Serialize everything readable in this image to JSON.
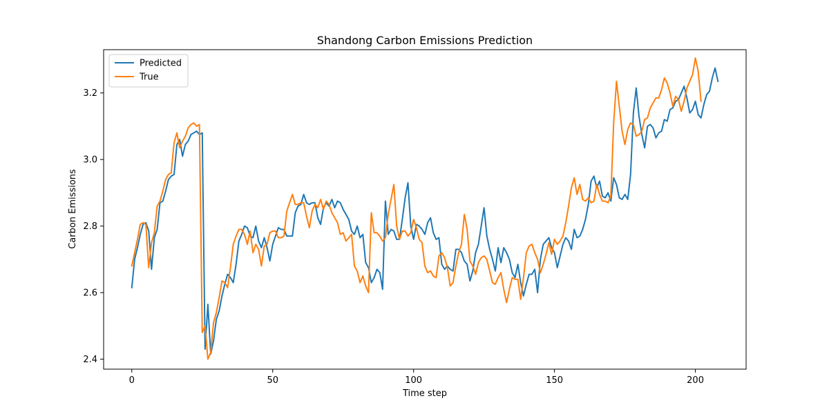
{
  "chart_data": {
    "type": "line",
    "title": "Shandong Carbon Emissions Prediction",
    "xlabel": "Time step",
    "ylabel": "Carbon Emissions",
    "xlim": [
      -10,
      218
    ],
    "ylim": [
      2.37,
      3.33
    ],
    "xticks": [
      0,
      50,
      100,
      150,
      200
    ],
    "yticks": [
      2.4,
      2.6,
      2.8,
      3.0,
      3.2
    ],
    "ytick_labels": [
      "2.4",
      "2.6",
      "2.8",
      "3.0",
      "3.2"
    ],
    "grid": false,
    "legend": {
      "location": "upper left",
      "entries": [
        "Predicted",
        "True"
      ]
    },
    "series": [
      {
        "name": "Predicted",
        "color": "#1f77b4",
        "values": [
          2.615,
          2.7,
          2.735,
          2.775,
          2.805,
          2.81,
          2.785,
          2.67,
          2.765,
          2.79,
          2.87,
          2.875,
          2.905,
          2.94,
          2.95,
          2.955,
          3.045,
          3.06,
          3.01,
          3.045,
          3.055,
          3.075,
          3.08,
          3.085,
          3.075,
          3.08,
          2.43,
          2.565,
          2.415,
          2.455,
          2.52,
          2.545,
          2.59,
          2.625,
          2.655,
          2.645,
          2.63,
          2.685,
          2.755,
          2.775,
          2.8,
          2.795,
          2.77,
          2.765,
          2.8,
          2.755,
          2.735,
          2.765,
          2.735,
          2.695,
          2.745,
          2.77,
          2.795,
          2.79,
          2.79,
          2.77,
          2.77,
          2.77,
          2.84,
          2.86,
          2.865,
          2.895,
          2.87,
          2.865,
          2.87,
          2.87,
          2.825,
          2.805,
          2.855,
          2.87,
          2.86,
          2.88,
          2.855,
          2.875,
          2.87,
          2.85,
          2.835,
          2.82,
          2.785,
          2.775,
          2.8,
          2.765,
          2.775,
          2.69,
          2.675,
          2.63,
          2.645,
          2.67,
          2.66,
          2.61,
          2.875,
          2.775,
          2.79,
          2.785,
          2.76,
          2.76,
          2.82,
          2.885,
          2.93,
          2.8,
          2.76,
          2.805,
          2.8,
          2.79,
          2.775,
          2.81,
          2.825,
          2.78,
          2.76,
          2.765,
          2.685,
          2.67,
          2.68,
          2.67,
          2.665,
          2.73,
          2.73,
          2.72,
          2.695,
          2.685,
          2.635,
          2.665,
          2.72,
          2.745,
          2.8,
          2.855,
          2.77,
          2.73,
          2.7,
          2.665,
          2.735,
          2.69,
          2.735,
          2.72,
          2.7,
          2.66,
          2.645,
          2.685,
          2.63,
          2.59,
          2.625,
          2.655,
          2.655,
          2.67,
          2.6,
          2.7,
          2.745,
          2.755,
          2.765,
          2.735,
          2.72,
          2.675,
          2.71,
          2.745,
          2.765,
          2.755,
          2.73,
          2.79,
          2.765,
          2.77,
          2.79,
          2.82,
          2.865,
          2.935,
          2.95,
          2.915,
          2.935,
          2.89,
          2.885,
          2.9,
          2.875,
          2.945,
          2.925,
          2.885,
          2.88,
          2.895,
          2.88,
          2.955,
          3.14,
          3.215,
          3.13,
          3.075,
          3.035,
          3.1,
          3.105,
          3.095,
          3.065,
          3.08,
          3.085,
          3.12,
          3.115,
          3.15,
          3.155,
          3.175,
          3.18,
          3.2,
          3.22,
          3.185,
          3.14,
          3.15,
          3.175,
          3.135,
          3.125,
          3.165,
          3.195,
          3.205,
          3.245,
          3.275,
          3.235
        ]
      },
      {
        "name": "True",
        "color": "#ff7f0e",
        "values": [
          2.68,
          2.72,
          2.76,
          2.805,
          2.81,
          2.805,
          2.675,
          2.75,
          2.78,
          2.86,
          2.875,
          2.905,
          2.94,
          2.955,
          2.96,
          3.05,
          3.08,
          3.035,
          3.055,
          3.07,
          3.095,
          3.105,
          3.11,
          3.1,
          3.105,
          2.48,
          2.5,
          2.4,
          2.42,
          2.51,
          2.54,
          2.585,
          2.635,
          2.63,
          2.615,
          2.675,
          2.745,
          2.77,
          2.79,
          2.79,
          2.775,
          2.745,
          2.785,
          2.72,
          2.745,
          2.73,
          2.68,
          2.74,
          2.745,
          2.78,
          2.785,
          2.785,
          2.765,
          2.765,
          2.77,
          2.845,
          2.87,
          2.895,
          2.865,
          2.865,
          2.87,
          2.87,
          2.83,
          2.795,
          2.845,
          2.865,
          2.855,
          2.88,
          2.85,
          2.875,
          2.865,
          2.84,
          2.825,
          2.81,
          2.775,
          2.78,
          2.755,
          2.765,
          2.775,
          2.68,
          2.665,
          2.63,
          2.65,
          2.62,
          2.6,
          2.84,
          2.78,
          2.78,
          2.77,
          2.755,
          2.765,
          2.835,
          2.88,
          2.925,
          2.8,
          2.76,
          2.785,
          2.785,
          2.77,
          2.78,
          2.82,
          2.795,
          2.76,
          2.75,
          2.68,
          2.66,
          2.665,
          2.65,
          2.645,
          2.71,
          2.72,
          2.705,
          2.675,
          2.62,
          2.63,
          2.68,
          2.72,
          2.745,
          2.835,
          2.79,
          2.695,
          2.68,
          2.655,
          2.69,
          2.705,
          2.71,
          2.7,
          2.665,
          2.63,
          2.625,
          2.645,
          2.66,
          2.61,
          2.57,
          2.61,
          2.645,
          2.64,
          2.64,
          2.58,
          2.645,
          2.72,
          2.74,
          2.745,
          2.72,
          2.7,
          2.66,
          2.685,
          2.715,
          2.75,
          2.715,
          2.76,
          2.745,
          2.755,
          2.77,
          2.81,
          2.86,
          2.915,
          2.945,
          2.895,
          2.925,
          2.88,
          2.875,
          2.885,
          2.87,
          2.875,
          2.925,
          2.895,
          2.875,
          2.875,
          2.87,
          2.89,
          3.11,
          3.235,
          3.16,
          3.085,
          3.045,
          3.09,
          3.11,
          3.105,
          3.07,
          3.075,
          3.085,
          3.12,
          3.125,
          3.155,
          3.17,
          3.185,
          3.185,
          3.21,
          3.245,
          3.23,
          3.2,
          3.16,
          3.19,
          3.18,
          3.145,
          3.175,
          3.215,
          3.235,
          3.255,
          3.305,
          3.265,
          3.175
        ]
      }
    ]
  }
}
